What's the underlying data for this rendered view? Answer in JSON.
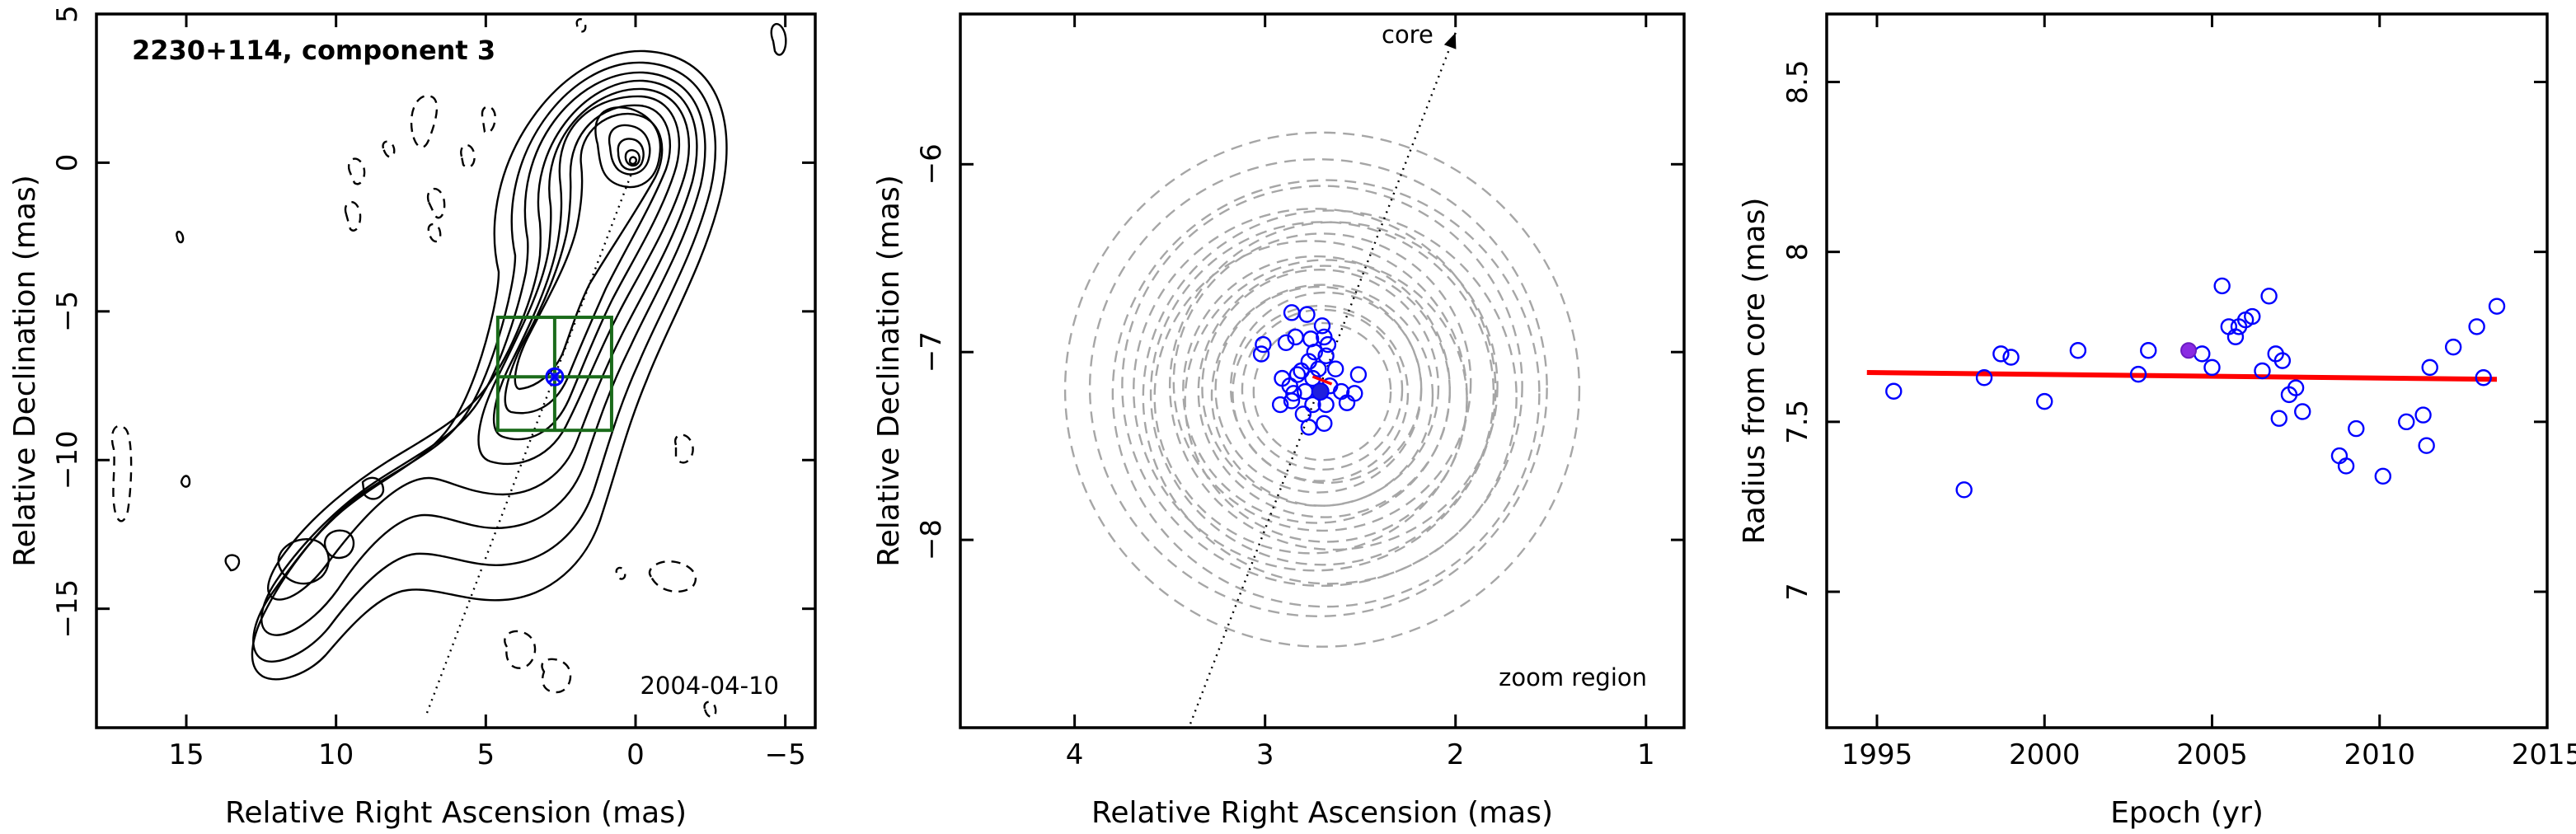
{
  "figure": {
    "panel1": {
      "source_label": "2230+114, component 3",
      "date_label": "2004-04-10"
    },
    "panel2": {
      "core_label": "core",
      "zoom_label": "zoom region"
    }
  },
  "chart_data": [
    {
      "type": "contour",
      "title": "2230+114, component 3",
      "xlabel": "Relative Right Ascension (mas)",
      "ylabel": "Relative Declination (mas)",
      "xlim": [
        18,
        -6
      ],
      "ylim": [
        -19,
        5
      ],
      "xticks": [
        15,
        10,
        5,
        0,
        -5
      ],
      "yticks": [
        5,
        0,
        -5,
        -10,
        -15
      ],
      "annotation": "2004-04-10",
      "component_position": [
        2.7,
        -7.2
      ],
      "zoom_box": {
        "x": [
          4.6,
          0.8
        ],
        "y": [
          -9.0,
          -5.2
        ]
      },
      "core_direction_line": {
        "from": [
          0,
          0
        ],
        "to": [
          7.0,
          -18.6
        ]
      }
    },
    {
      "type": "scatter",
      "title": "",
      "xlabel": "Relative Right Ascension (mas)",
      "ylabel": "Relative Declination (mas)",
      "xlim": [
        4.6,
        0.8
      ],
      "ylim": [
        -9.0,
        -5.2
      ],
      "xticks": [
        4,
        3,
        2,
        1
      ],
      "yticks": [
        -6,
        -7,
        -8
      ],
      "annotations": [
        "core",
        "zoom region"
      ],
      "points": [
        [
          2.86,
          -6.79
        ],
        [
          2.78,
          -6.8
        ],
        [
          2.7,
          -6.86
        ],
        [
          2.84,
          -6.92
        ],
        [
          2.76,
          -6.93
        ],
        [
          2.69,
          -6.92
        ],
        [
          2.89,
          -6.95
        ],
        [
          2.67,
          -6.96
        ],
        [
          3.01,
          -6.96
        ],
        [
          3.02,
          -7.01
        ],
        [
          2.74,
          -7.0
        ],
        [
          2.77,
          -7.05
        ],
        [
          2.68,
          -7.02
        ],
        [
          2.81,
          -7.1
        ],
        [
          2.72,
          -7.09
        ],
        [
          2.63,
          -7.09
        ],
        [
          2.83,
          -7.12
        ],
        [
          2.51,
          -7.12
        ],
        [
          2.91,
          -7.14
        ],
        [
          2.75,
          -7.14
        ],
        [
          2.87,
          -7.18
        ],
        [
          2.66,
          -7.18
        ],
        [
          2.85,
          -7.22
        ],
        [
          2.79,
          -7.21
        ],
        [
          2.6,
          -7.21
        ],
        [
          2.53,
          -7.22
        ],
        [
          2.86,
          -7.26
        ],
        [
          2.75,
          -7.28
        ],
        [
          2.68,
          -7.28
        ],
        [
          2.92,
          -7.28
        ],
        [
          2.57,
          -7.27
        ],
        [
          2.8,
          -7.33
        ],
        [
          2.69,
          -7.38
        ],
        [
          2.77,
          -7.4
        ]
      ],
      "mean_point": [
        2.71,
        -7.21
      ],
      "velocity_vector": {
        "from": [
          2.75,
          -7.13
        ],
        "to": [
          2.65,
          -7.17
        ]
      },
      "rings": [
        {
          "cx": 2.7,
          "cy": -7.2,
          "r": 1.35
        },
        {
          "cx": 2.72,
          "cy": -7.19,
          "r": 1.2
        },
        {
          "cx": 2.68,
          "cy": -7.22,
          "r": 1.12
        },
        {
          "cx": 2.7,
          "cy": -7.18,
          "r": 1.05
        },
        {
          "cx": 2.66,
          "cy": -7.24,
          "r": 0.98
        },
        {
          "cx": 2.74,
          "cy": -7.2,
          "r": 0.95
        },
        {
          "cx": 2.7,
          "cy": -7.22,
          "r": 0.9
        },
        {
          "cx": 2.64,
          "cy": -7.18,
          "r": 0.86
        },
        {
          "cx": 2.76,
          "cy": -7.24,
          "r": 0.82
        },
        {
          "cx": 2.7,
          "cy": -7.16,
          "r": 0.78
        },
        {
          "cx": 2.68,
          "cy": -7.26,
          "r": 0.74
        },
        {
          "cx": 2.73,
          "cy": -7.2,
          "r": 0.7
        },
        {
          "cx": 2.69,
          "cy": -7.21,
          "r": 0.66
        },
        {
          "cx": 2.71,
          "cy": -7.19,
          "r": 0.62
        },
        {
          "cx": 2.7,
          "cy": -7.23,
          "r": 0.58
        },
        {
          "cx": 2.72,
          "cy": -7.2,
          "r": 0.54
        },
        {
          "cx": 2.68,
          "cy": -7.19,
          "r": 0.5
        },
        {
          "cx": 2.71,
          "cy": -7.22,
          "r": 0.46
        },
        {
          "cx": 2.7,
          "cy": -7.2,
          "r": 0.42
        },
        {
          "cx": 2.7,
          "cy": -7.21,
          "r": 0.36
        }
      ],
      "core_direction_line": {
        "from": [
          2.0,
          -5.3
        ],
        "to": [
          3.4,
          -9.0
        ]
      }
    },
    {
      "type": "scatter",
      "title": "",
      "xlabel": "Epoch (yr)",
      "ylabel": "Radius from core (mas)",
      "xlim": [
        1993.5,
        2015
      ],
      "ylim": [
        6.6,
        8.7
      ],
      "xticks": [
        1995,
        2000,
        2005,
        2010,
        2015
      ],
      "yticks": [
        7,
        7.5,
        8,
        8.5
      ],
      "points": [
        [
          1995.5,
          7.59
        ],
        [
          1997.6,
          7.3
        ],
        [
          1998.2,
          7.63
        ],
        [
          1998.7,
          7.7
        ],
        [
          1999.0,
          7.69
        ],
        [
          2000.0,
          7.56
        ],
        [
          2001.0,
          7.71
        ],
        [
          2002.8,
          7.64
        ],
        [
          2003.1,
          7.71
        ],
        [
          2004.7,
          7.7
        ],
        [
          2005.0,
          7.66
        ],
        [
          2005.3,
          7.9
        ],
        [
          2005.5,
          7.78
        ],
        [
          2005.7,
          7.75
        ],
        [
          2005.8,
          7.78
        ],
        [
          2006.0,
          7.8
        ],
        [
          2006.2,
          7.81
        ],
        [
          2006.5,
          7.65
        ],
        [
          2006.7,
          7.87
        ],
        [
          2006.9,
          7.7
        ],
        [
          2007.0,
          7.51
        ],
        [
          2007.1,
          7.68
        ],
        [
          2007.3,
          7.58
        ],
        [
          2007.5,
          7.6
        ],
        [
          2007.7,
          7.53
        ],
        [
          2008.8,
          7.4
        ],
        [
          2009.0,
          7.37
        ],
        [
          2009.3,
          7.48
        ],
        [
          2010.1,
          7.34
        ],
        [
          2010.8,
          7.5
        ],
        [
          2011.3,
          7.52
        ],
        [
          2011.4,
          7.43
        ],
        [
          2011.5,
          7.66
        ],
        [
          2012.2,
          7.72
        ],
        [
          2012.9,
          7.78
        ],
        [
          2013.1,
          7.63
        ],
        [
          2013.5,
          7.84
        ]
      ],
      "highlight_point": [
        2004.3,
        7.71
      ],
      "fit_line": {
        "x": [
          1994.7,
          2013.5
        ],
        "y": [
          7.645,
          7.625
        ]
      }
    }
  ]
}
